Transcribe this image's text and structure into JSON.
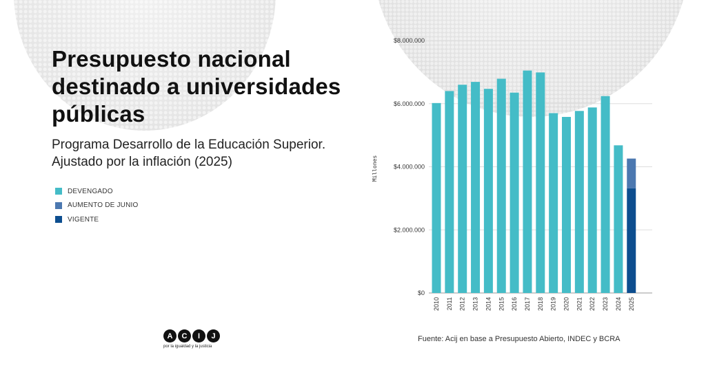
{
  "title": "Presupuesto nacional destinado a universidades públicas",
  "subtitle": "Programa Desarrollo de la Educación Superior. Ajustado por la inflación (2025)",
  "source": "Fuente: Acij en base a Presupuesto Abierto, INDEC y BCRA",
  "logo": {
    "letters": [
      "A",
      "C",
      "I",
      "J"
    ],
    "tagline": "por la igualdad y la justicia"
  },
  "colors": {
    "devengado": "#44BCC7",
    "aumento": "#4C78B0",
    "vigente": "#0D4E8F",
    "grid": "#dddddd"
  },
  "chart_data": {
    "type": "bar",
    "stacked": true,
    "categories": [
      "2010",
      "2011",
      "2012",
      "2013",
      "2014",
      "2015",
      "2016",
      "2017",
      "2018",
      "2019",
      "2020",
      "2021",
      "2022",
      "2023",
      "2024",
      "2025"
    ],
    "series": [
      {
        "name": "DEVENGADO",
        "values": [
          6020000,
          6400000,
          6600000,
          6690000,
          6470000,
          6790000,
          6350000,
          7050000,
          6990000,
          5700000,
          5580000,
          5770000,
          5880000,
          6240000,
          4680000,
          0
        ]
      },
      {
        "name": "VIGENTE",
        "values": [
          0,
          0,
          0,
          0,
          0,
          0,
          0,
          0,
          0,
          0,
          0,
          0,
          0,
          0,
          0,
          3320000
        ]
      },
      {
        "name": "AUMENTO DE JUNIO",
        "values": [
          0,
          0,
          0,
          0,
          0,
          0,
          0,
          0,
          0,
          0,
          0,
          0,
          0,
          0,
          0,
          940000
        ]
      }
    ],
    "legend": [
      "DEVENGADO",
      "AUMENTO DE JUNIO",
      "VIGENTE"
    ],
    "ylabel": "Millones",
    "xlabel": "",
    "ylim": [
      0,
      8000000
    ],
    "yticks": [
      0,
      2000000,
      4000000,
      6000000,
      8000000
    ],
    "ytick_labels": [
      "$0",
      "$2.000.000",
      "$4.000.000",
      "$6.000.000",
      "$8.000.000"
    ],
    "legend_position": "left",
    "grid": true
  }
}
